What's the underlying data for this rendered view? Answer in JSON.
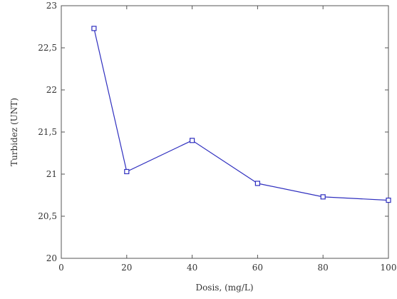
{
  "chart_data": {
    "type": "line",
    "title": "",
    "xlabel": "Dosis, (mg/L)",
    "ylabel": "Turbidez (UNT)",
    "xlim": [
      0,
      100
    ],
    "ylim": [
      20,
      23
    ],
    "x_ticks": [
      0,
      20,
      40,
      60,
      80,
      100
    ],
    "y_ticks": [
      20,
      20.5,
      21,
      21.5,
      22,
      22.5,
      23
    ],
    "x_tick_labels": [
      "0",
      "20",
      "40",
      "60",
      "80",
      "100"
    ],
    "y_tick_labels": [
      "20",
      "20,5",
      "21",
      "21,5",
      "22",
      "22,5",
      "23"
    ],
    "grid": false,
    "legend": "none",
    "series": [
      {
        "x": [
          10,
          20,
          40,
          60,
          80,
          100
        ],
        "values": [
          22.73,
          21.03,
          21.4,
          20.89,
          20.73,
          20.69
        ],
        "color": "#2f2fbf",
        "marker": "square"
      }
    ]
  }
}
